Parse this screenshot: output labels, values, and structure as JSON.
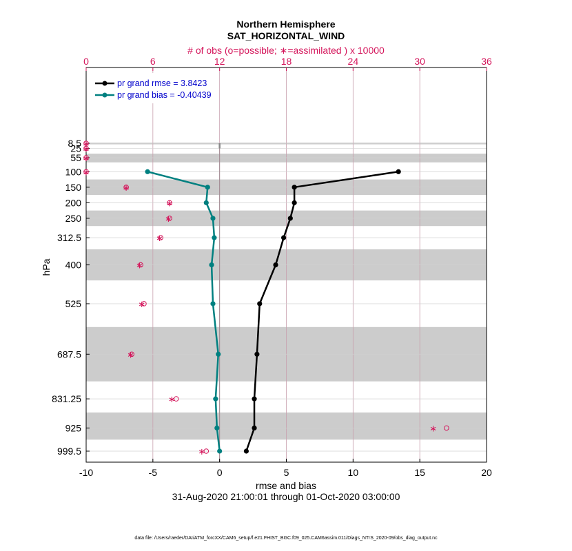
{
  "chart_data": {
    "type": "line",
    "title": "Northern Hemisphere",
    "subtitle": "SAT_HORIZONTAL_WIND",
    "top_axis_label": "# of obs (o=possible;  ∗=assimilated ) x 10000",
    "xlabel": "rmse and bias",
    "ylabel": "hPa",
    "date_range": "31-Aug-2020 21:00:01 through 01-Oct-2020 03:00:00",
    "footer": "data file: /Users/raeder/DAI/ATM_forcXX/CAM6_setup/f.e21.FHIST_BGC.f09_025.CAM6assim.011/Diags_NTrS_2020-09/obs_diag_output.nc",
    "xlim": [
      -10,
      20
    ],
    "xticks": [
      "-10",
      "-5",
      "0",
      "5",
      "10",
      "15",
      "20"
    ],
    "xtick_values": [
      -10,
      -5,
      0,
      5,
      10,
      15,
      20
    ],
    "top_xlim": [
      0,
      36
    ],
    "top_xticks": [
      "0",
      "6",
      "12",
      "18",
      "24",
      "30",
      "36"
    ],
    "top_xtick_values": [
      0,
      6,
      12,
      18,
      24,
      30,
      36
    ],
    "levels": [
      "8.5",
      "25",
      "55",
      "100",
      "150",
      "200",
      "250",
      "312.5",
      "400",
      "525",
      "687.5",
      "831.25",
      "925",
      "999.5"
    ],
    "shaded_level_bands": [
      [
        6.5,
        12
      ],
      [
        42,
        70
      ],
      [
        125,
        175
      ],
      [
        225,
        275
      ],
      [
        350,
        450
      ],
      [
        600,
        775
      ],
      [
        875,
        962.5
      ]
    ],
    "series": [
      {
        "name": "pr grand rmse",
        "legend": "pr grand rmse = 3.8423",
        "color": "#000000",
        "levels": [
          100,
          150,
          200,
          250,
          312.5,
          400,
          525,
          687.5,
          831.25,
          925,
          999.5
        ],
        "values": [
          13.4,
          5.6,
          5.6,
          5.3,
          4.8,
          4.2,
          3.0,
          2.8,
          2.6,
          2.6,
          2.0
        ]
      },
      {
        "name": "pr grand bias",
        "legend": "pr grand bias = -0.40439",
        "color": "#008080",
        "levels": [
          100,
          150,
          200,
          250,
          312.5,
          400,
          525,
          687.5,
          831.25,
          925,
          999.5
        ],
        "values": [
          -5.4,
          -0.9,
          -1.0,
          -0.5,
          -0.4,
          -0.6,
          -0.5,
          -0.1,
          -0.3,
          -0.2,
          0.0
        ]
      }
    ],
    "obs_counts": {
      "unit": "x 10000",
      "color": "#d4145a",
      "levels": [
        8.5,
        25,
        55,
        100,
        150,
        200,
        250,
        312.5,
        400,
        525,
        687.5,
        831.25,
        925,
        999.5
      ],
      "possible": [
        0.0,
        0.0,
        0.0,
        0.0,
        3.6,
        7.5,
        7.5,
        6.7,
        4.9,
        5.2,
        4.1,
        8.1,
        32.4,
        10.8
      ],
      "assimilated": [
        0.0,
        0.0,
        0.0,
        0.0,
        3.6,
        7.5,
        7.4,
        6.6,
        4.8,
        5.0,
        4.0,
        7.7,
        31.2,
        10.4
      ]
    },
    "zero_line": true,
    "grid": true,
    "legend_position": "top-left"
  }
}
